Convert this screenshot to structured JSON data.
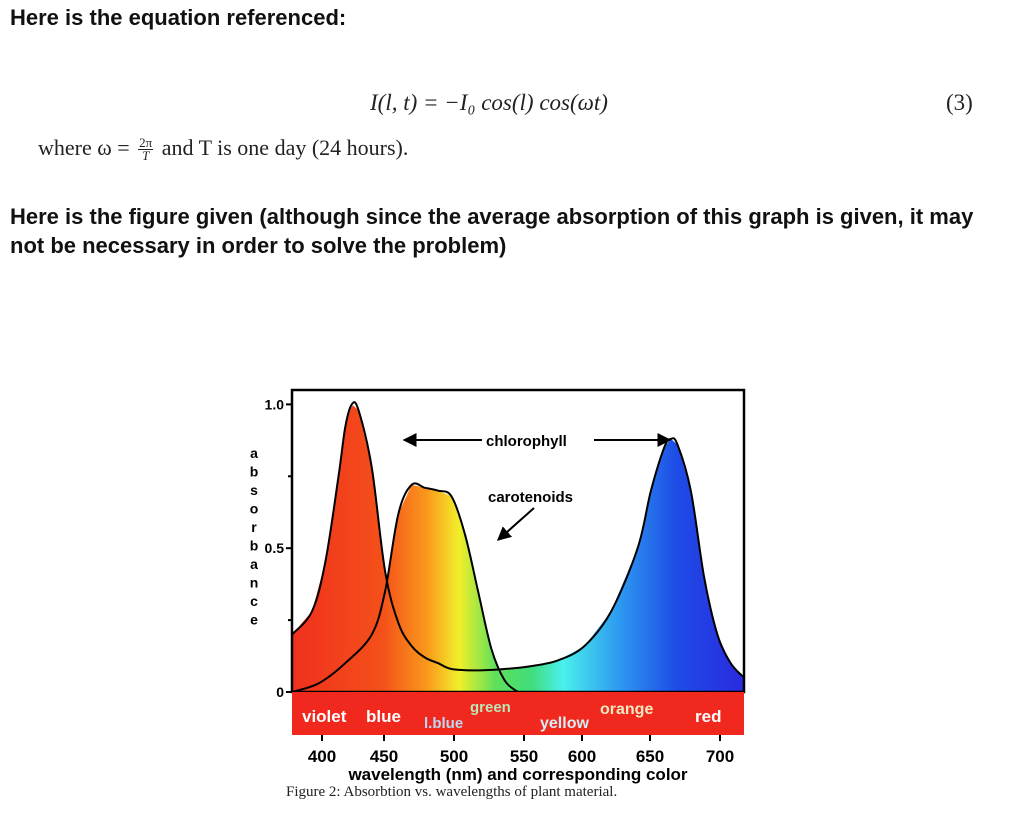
{
  "headings": {
    "equation_intro": "Here is the equation referenced:",
    "figure_intro": "Here is the figure given (although since the average absorption of this graph is given, it may not be necessary in order to solve the problem)"
  },
  "equation": {
    "formula": "I(l, t) = −I₀ cos(l) cos(ωt)",
    "number": "(3)",
    "where_prefix": "where ω =",
    "frac_num": "2π",
    "frac_den": "T",
    "where_suffix": "and T is one day (24 hours)."
  },
  "figure": {
    "caption": "Figure 2: Absorbtion vs. wavelengths of plant material.",
    "chart_data": {
      "type": "line",
      "xlabel": "wavelength (nm) and corresponding color",
      "ylabel": "absorbance",
      "x_ticks": [
        "400",
        "450",
        "500",
        "550",
        "600",
        "650",
        "700"
      ],
      "y_ticks": [
        "1.0",
        "0.5",
        "0"
      ],
      "xlim": [
        380,
        720
      ],
      "ylim": [
        0,
        1.05
      ],
      "annotations": [
        "chlorophyll",
        "carotenoids"
      ],
      "color_bands": [
        {
          "label": "violet",
          "color": "#ffffff"
        },
        {
          "label": "blue",
          "color": "#ffffff"
        },
        {
          "label": "l.blue",
          "color": "#bcd8f2"
        },
        {
          "label": "green",
          "color": "#bce6b4"
        },
        {
          "label": "yellow",
          "color": "#d6edf6"
        },
        {
          "label": "orange",
          "color": "#f2e8c2"
        },
        {
          "label": "red",
          "color": "#ffffff"
        }
      ],
      "series": [
        {
          "name": "chlorophyll",
          "x": [
            380,
            395,
            405,
            415,
            420,
            425,
            430,
            440,
            450,
            460,
            470,
            480,
            490,
            500,
            520,
            540,
            560,
            580,
            600,
            620,
            640,
            650,
            660,
            665,
            670,
            680,
            690,
            700,
            710,
            720
          ],
          "y": [
            0.2,
            0.28,
            0.45,
            0.75,
            0.92,
            1.0,
            0.98,
            0.78,
            0.42,
            0.24,
            0.16,
            0.12,
            0.1,
            0.08,
            0.075,
            0.08,
            0.09,
            0.11,
            0.16,
            0.28,
            0.5,
            0.7,
            0.85,
            0.88,
            0.86,
            0.7,
            0.4,
            0.2,
            0.1,
            0.05
          ]
        },
        {
          "name": "carotenoids",
          "x": [
            380,
            400,
            420,
            440,
            450,
            460,
            470,
            480,
            490,
            500,
            510,
            520,
            530,
            540,
            550
          ],
          "y": [
            0.0,
            0.03,
            0.1,
            0.2,
            0.35,
            0.62,
            0.72,
            0.71,
            0.7,
            0.68,
            0.55,
            0.35,
            0.15,
            0.04,
            0.0
          ]
        }
      ]
    }
  }
}
